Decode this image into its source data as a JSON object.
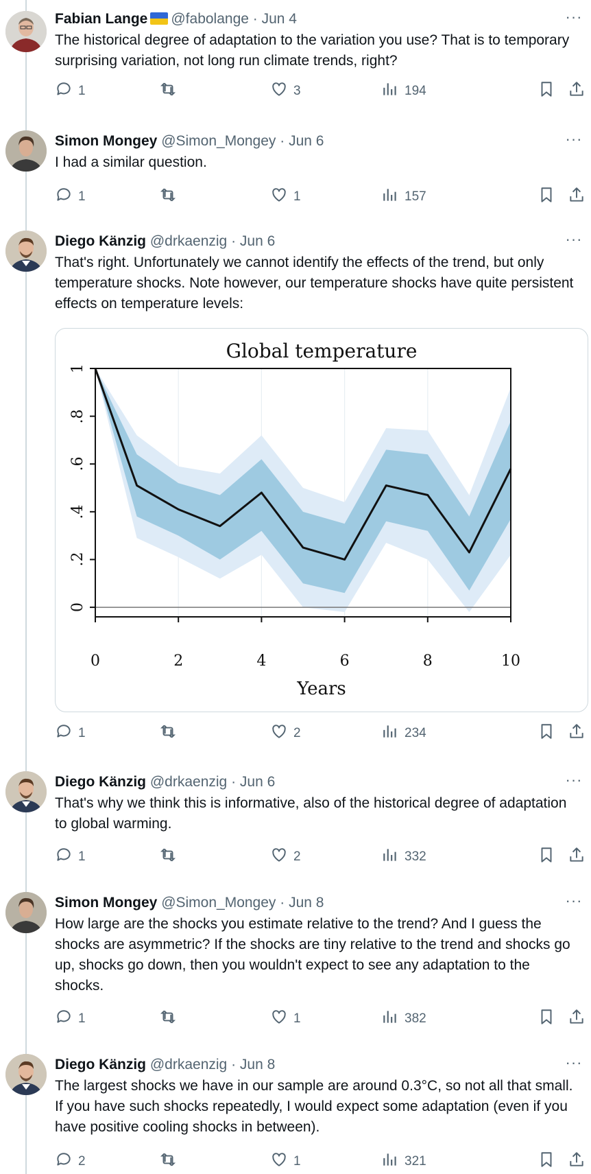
{
  "tweets": [
    {
      "name": "Fabian Lange",
      "flag": true,
      "handle": "@fabolange · Jun 4",
      "text": "The historical degree of adaptation to the variation you use? That is to temporary surprising variation, not long run climate trends, right?",
      "replies": "1",
      "retweets": "",
      "likes": "3",
      "views": "194"
    },
    {
      "name": "Simon Mongey",
      "handle": "@Simon_Mongey · Jun 6",
      "text": "I had a similar question.",
      "replies": "1",
      "retweets": "",
      "likes": "1",
      "views": "157"
    },
    {
      "name": "Diego Känzig",
      "handle": "@drkaenzig · Jun 6",
      "text": "That's right. Unfortunately we cannot identify the effects of the trend, but only temperature shocks. Note however, our temperature shocks have quite persistent effects on temperature levels:",
      "replies": "1",
      "retweets": "",
      "likes": "2",
      "views": "234"
    },
    {
      "name": "Diego Känzig",
      "handle": "@drkaenzig · Jun 6",
      "text": "That's why we think this is informative, also of the historical degree of adaptation to global warming.",
      "replies": "1",
      "retweets": "",
      "likes": "2",
      "views": "332"
    },
    {
      "name": "Simon Mongey",
      "handle": "@Simon_Mongey · Jun 8",
      "text": "How large are the shocks you estimate relative to the trend? And I guess the shocks are asymmetric? If the shocks are tiny relative to the trend and shocks go up, shocks go down, then you wouldn't expect to see any adaptation to the shocks.",
      "replies": "1",
      "retweets": "",
      "likes": "1",
      "views": "382"
    },
    {
      "name": "Diego Känzig",
      "handle": "@drkaenzig · Jun 8",
      "text": "The largest shocks we have in our sample are around 0.3°C, so not all that small. If you have such shocks repeatedly, I would expect some adaptation (even if you have positive cooling shocks in between).",
      "replies": "2",
      "retweets": "",
      "likes": "1",
      "views": "321"
    }
  ],
  "more_glyph": "···",
  "icons": {
    "reply": "reply-icon",
    "retweet": "retweet-icon",
    "like": "heart-icon",
    "views": "views-icon",
    "bookmark": "bookmark-icon",
    "share": "share-icon"
  },
  "colors": {
    "band_outer": "#deebf7",
    "band_inner": "#9ecae1",
    "line": "#111111"
  },
  "chart_data": {
    "type": "line",
    "title": "Global temperature",
    "xlabel": "Years",
    "ylabel": "",
    "x": [
      0,
      1,
      2,
      3,
      4,
      5,
      6,
      7,
      8,
      9,
      10
    ],
    "xticks": [
      "0",
      "2",
      "4",
      "6",
      "8",
      "10"
    ],
    "yticks": [
      "0",
      ".2",
      ".4",
      ".6",
      ".8",
      "1"
    ],
    "xlim": [
      0,
      10
    ],
    "ylim": [
      -0.04,
      1.0
    ],
    "grid": true,
    "series": [
      {
        "values": [
          1.0,
          0.51,
          0.41,
          0.34,
          0.48,
          0.25,
          0.2,
          0.51,
          0.47,
          0.23,
          0.58
        ]
      }
    ],
    "bands": [
      {
        "lower": [
          1.0,
          0.38,
          0.3,
          0.2,
          0.32,
          0.1,
          0.06,
          0.36,
          0.32,
          0.07,
          0.37
        ],
        "upper": [
          1.0,
          0.64,
          0.52,
          0.47,
          0.62,
          0.4,
          0.35,
          0.66,
          0.64,
          0.38,
          0.78
        ]
      },
      {
        "lower": [
          1.0,
          0.29,
          0.21,
          0.12,
          0.22,
          0.0,
          -0.02,
          0.27,
          0.2,
          -0.02,
          0.22
        ],
        "upper": [
          1.0,
          0.72,
          0.59,
          0.56,
          0.72,
          0.5,
          0.44,
          0.75,
          0.74,
          0.47,
          0.92
        ]
      }
    ]
  }
}
